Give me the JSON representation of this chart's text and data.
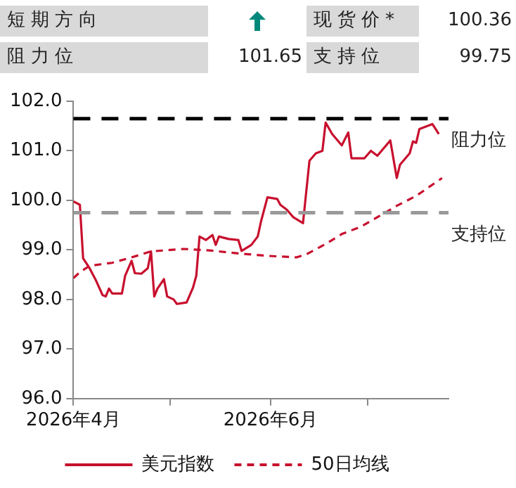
{
  "chart_data": {
    "type": "line",
    "annotations": [
      "短期方向",
      "现货价*",
      "100.36",
      "阻力位",
      "101.65",
      "支持位",
      "99.75"
    ],
    "series": [
      {
        "name": "美元指数",
        "color": "#c8102e",
        "line_style": "solid",
        "x": [
          "2026-04-01",
          "2026-04-03",
          "2026-04-04",
          "2026-04-06",
          "2026-04-08",
          "2026-04-10",
          "2026-04-11",
          "2026-04-12",
          "2026-04-13",
          "2026-04-16",
          "2026-04-17",
          "2026-04-19",
          "2026-04-20",
          "2026-04-22",
          "2026-04-24",
          "2026-04-25",
          "2026-04-26",
          "2026-04-27",
          "2026-04-29",
          "2026-04-30",
          "2026-05-02",
          "2026-05-03",
          "2026-05-06",
          "2026-05-08",
          "2026-05-09",
          "2026-05-10",
          "2026-05-12",
          "2026-05-14",
          "2026-05-15",
          "2026-05-16",
          "2026-05-19",
          "2026-05-22",
          "2026-05-23",
          "2026-05-26",
          "2026-05-28",
          "2026-05-29",
          "2026-05-31",
          "2026-06-03",
          "2026-06-04",
          "2026-06-06",
          "2026-06-08",
          "2026-06-11",
          "2026-06-13",
          "2026-06-15",
          "2026-06-17",
          "2026-06-18",
          "2026-06-20",
          "2026-06-23",
          "2026-06-25",
          "2026-06-26",
          "2026-06-30",
          "2026-07-02",
          "2026-07-04",
          "2026-07-08",
          "2026-07-10",
          "2026-07-11",
          "2026-07-14",
          "2026-07-15",
          "2026-07-16",
          "2026-07-17",
          "2026-07-21",
          "2026-07-22",
          "2026-07-23"
        ],
        "values": [
          99.98,
          99.91,
          98.83,
          98.63,
          98.38,
          98.09,
          98.06,
          98.22,
          98.12,
          98.12,
          98.48,
          98.78,
          98.53,
          98.52,
          98.63,
          98.97,
          98.06,
          98.22,
          98.41,
          98.06,
          98.0,
          97.91,
          97.94,
          98.24,
          98.48,
          99.27,
          99.2,
          99.3,
          99.1,
          99.27,
          99.22,
          99.2,
          98.98,
          99.1,
          99.27,
          99.57,
          100.06,
          100.03,
          99.91,
          99.81,
          99.66,
          99.54,
          100.8,
          100.95,
          101.0,
          101.57,
          101.34,
          101.11,
          101.37,
          100.85,
          100.85,
          101.0,
          100.9,
          101.21,
          100.45,
          100.72,
          100.95,
          101.19,
          101.16,
          101.44,
          101.54,
          101.44,
          101.34
        ]
      },
      {
        "name": "50日均线",
        "color": "#c8102e",
        "line_style": "dashed",
        "x": [
          "2026-04-01",
          "2026-04-03",
          "2026-04-06",
          "2026-04-13",
          "2026-04-19",
          "2026-04-25",
          "2026-05-05",
          "2026-05-13",
          "2026-05-22",
          "2026-05-31",
          "2026-06-09",
          "2026-06-12",
          "2026-06-18",
          "2026-06-23",
          "2026-06-29",
          "2026-07-04",
          "2026-07-10",
          "2026-07-16",
          "2026-07-22",
          "2026-07-24"
        ],
        "values": [
          98.43,
          98.55,
          98.68,
          98.74,
          98.85,
          98.97,
          99.02,
          98.99,
          98.93,
          98.88,
          98.85,
          98.91,
          99.12,
          99.32,
          99.47,
          99.66,
          99.89,
          100.09,
          100.36,
          100.45
        ]
      }
    ],
    "xlim": [
      "2026-04-01",
      "2026-07-26"
    ],
    "xticks": [
      {
        "value": "2026-04-01",
        "label": "2026年4月"
      },
      {
        "value": "2026-05-01",
        "label": null
      },
      {
        "value": "2026-06-01",
        "label": "2026年6月"
      },
      {
        "value": "2026-07-01",
        "label": null
      }
    ],
    "ylim": [
      96,
      102
    ],
    "yticks": [
      {
        "value": 96,
        "label": "96.0"
      },
      {
        "value": 97,
        "label": "97.0"
      },
      {
        "value": 98,
        "label": "98.0"
      },
      {
        "value": 99,
        "label": "99.0"
      },
      {
        "value": 100,
        "label": "100.0"
      },
      {
        "value": 101,
        "label": "101.0"
      },
      {
        "value": 102,
        "label": "102.0"
      }
    ],
    "ref_lines": [
      {
        "axis": "y",
        "value": 101.65,
        "label": "阻力位",
        "color": "#000000",
        "line_style": "dashed"
      },
      {
        "axis": "y",
        "value": 99.75,
        "label": "支持位",
        "color": "#999999",
        "line_style": "dashed"
      }
    ],
    "grid": false,
    "legend": "bottom",
    "marker": "none"
  }
}
